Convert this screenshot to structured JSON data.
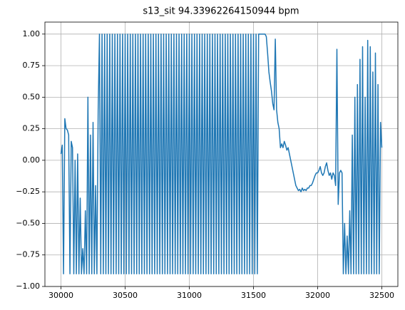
{
  "chart_data": {
    "type": "line",
    "title": "s13_sit 94.33962264150944 bpm",
    "x": [
      30000,
      30010,
      30020,
      30030,
      30040,
      30050,
      30060,
      30070,
      30080,
      30090,
      30100,
      30110,
      30120,
      30130,
      30140,
      30150,
      30160,
      30170,
      30180,
      30190,
      30200,
      30210,
      30220,
      30230,
      30240,
      30250,
      30260,
      30270,
      30280,
      30290,
      30300,
      30310,
      30320,
      30330,
      30340,
      30350,
      30360,
      30370,
      30380,
      30390,
      30400,
      30410,
      30420,
      30430,
      30440,
      30450,
      30460,
      30470,
      30480,
      30490,
      30500,
      30510,
      30520,
      30530,
      30540,
      30550,
      30560,
      30570,
      30580,
      30590,
      30600,
      30610,
      30620,
      30630,
      30640,
      30650,
      30660,
      30670,
      30680,
      30690,
      30700,
      30710,
      30720,
      30730,
      30740,
      30750,
      30760,
      30770,
      30780,
      30790,
      30800,
      30810,
      30820,
      30830,
      30840,
      30850,
      30860,
      30870,
      30880,
      30890,
      30900,
      30910,
      30920,
      30930,
      30940,
      30950,
      30960,
      30970,
      30980,
      30990,
      31000,
      31010,
      31020,
      31030,
      31040,
      31050,
      31060,
      31070,
      31080,
      31090,
      31100,
      31110,
      31120,
      31130,
      31140,
      31150,
      31160,
      31170,
      31180,
      31190,
      31200,
      31210,
      31220,
      31230,
      31240,
      31250,
      31260,
      31270,
      31280,
      31290,
      31300,
      31310,
      31320,
      31330,
      31340,
      31350,
      31360,
      31370,
      31380,
      31390,
      31400,
      31410,
      31420,
      31430,
      31440,
      31450,
      31460,
      31470,
      31480,
      31490,
      31500,
      31510,
      31520,
      31530,
      31540,
      31550,
      31560,
      31570,
      31580,
      31590,
      31600,
      31610,
      31620,
      31630,
      31640,
      31650,
      31660,
      31670,
      31680,
      31690,
      31700,
      31710,
      31720,
      31730,
      31740,
      31750,
      31760,
      31770,
      31780,
      31790,
      31800,
      31810,
      31820,
      31830,
      31840,
      31850,
      31860,
      31870,
      31880,
      31890,
      31900,
      31910,
      31920,
      31930,
      31940,
      31950,
      31960,
      31970,
      31980,
      31990,
      32000,
      32010,
      32020,
      32030,
      32040,
      32050,
      32060,
      32070,
      32080,
      32090,
      32100,
      32110,
      32120,
      32130,
      32140,
      32150,
      32160,
      32170,
      32180,
      32190,
      32200,
      32210,
      32220,
      32230,
      32240,
      32250,
      32260,
      32270,
      32280,
      32290,
      32300,
      32310,
      32320,
      32330,
      32340,
      32350,
      32360,
      32370,
      32380,
      32390,
      32400,
      32410,
      32420,
      32430,
      32440,
      32450,
      32460,
      32470,
      32480,
      32490,
      32500
    ],
    "series": [
      {
        "color": "#1f77b4",
        "values": [
          0.05,
          0.12,
          -0.9,
          0.33,
          0.25,
          0.24,
          0.2,
          -0.9,
          0.15,
          0.1,
          -0.9,
          0.0,
          -0.9,
          0.05,
          -0.9,
          -0.3,
          -0.9,
          -0.7,
          -0.9,
          -0.4,
          -0.9,
          0.5,
          -0.9,
          0.2,
          -0.9,
          0.3,
          -0.9,
          -0.2,
          -0.9,
          0.4,
          1,
          -0.9,
          1,
          -0.9,
          1,
          -0.9,
          1,
          -0.9,
          1,
          -0.9,
          1,
          -0.9,
          1,
          -0.9,
          1,
          -0.9,
          1,
          -0.9,
          1,
          -0.9,
          1,
          -0.9,
          1,
          -0.9,
          1,
          -0.9,
          1,
          -0.9,
          1,
          -0.9,
          1,
          -0.9,
          1,
          -0.9,
          1,
          -0.9,
          1,
          -0.9,
          1,
          -0.9,
          1,
          -0.9,
          1,
          -0.9,
          1,
          -0.9,
          1,
          -0.9,
          1,
          -0.9,
          1,
          -0.9,
          1,
          -0.9,
          1,
          -0.9,
          1,
          -0.9,
          1,
          -0.9,
          1,
          -0.9,
          1,
          -0.9,
          1,
          -0.9,
          1,
          -0.9,
          1,
          -0.9,
          1,
          -0.9,
          1,
          -0.9,
          1,
          -0.9,
          1,
          -0.9,
          1,
          -0.9,
          1,
          -0.9,
          1,
          -0.9,
          1,
          -0.9,
          1,
          -0.9,
          1,
          -0.9,
          1,
          -0.9,
          1,
          -0.9,
          1,
          -0.9,
          1,
          -0.9,
          1,
          -0.9,
          1,
          -0.9,
          1,
          -0.9,
          1,
          -0.9,
          1,
          -0.9,
          1,
          -0.9,
          1,
          -0.9,
          1,
          -0.9,
          1,
          -0.9,
          1,
          -0.9,
          1,
          -0.9,
          1,
          -0.9,
          1,
          -0.9,
          1,
          1,
          1,
          1,
          1,
          1,
          0.98,
          0.85,
          0.7,
          0.62,
          0.55,
          0.45,
          0.4,
          0.96,
          0.4,
          0.3,
          0.25,
          0.1,
          0.13,
          0.1,
          0.15,
          0.12,
          0.08,
          0.1,
          0.05,
          0.0,
          -0.05,
          -0.1,
          -0.15,
          -0.2,
          -0.22,
          -0.24,
          -0.23,
          -0.25,
          -0.22,
          -0.24,
          -0.23,
          -0.24,
          -0.22,
          -0.22,
          -0.2,
          -0.2,
          -0.18,
          -0.15,
          -0.12,
          -0.1,
          -0.1,
          -0.08,
          -0.05,
          -0.1,
          -0.12,
          -0.1,
          -0.05,
          -0.02,
          -0.08,
          -0.12,
          -0.1,
          -0.15,
          -0.1,
          -0.12,
          -0.2,
          0.88,
          -0.35,
          -0.1,
          -0.08,
          -0.1,
          -0.9,
          -0.5,
          -0.9,
          -0.6,
          -0.9,
          -0.4,
          -0.9,
          0.2,
          -0.9,
          0.5,
          -0.9,
          0.6,
          -0.9,
          0.8,
          -0.9,
          0.9,
          -0.9,
          0.5,
          -0.9,
          0.95,
          -0.9,
          0.9,
          -0.9,
          0.7,
          -0.9,
          0.85,
          -0.9,
          0.6,
          -0.9,
          0.3,
          0.1
        ]
      }
    ],
    "xlim": [
      29875,
      32625
    ],
    "ylim": [
      -1.0,
      1.095
    ],
    "xticks": [
      30000,
      30500,
      31000,
      31500,
      32000,
      32500
    ],
    "yticks": [
      {
        "value": -1.0,
        "label": "−1.00"
      },
      {
        "value": -0.75,
        "label": "−0.75"
      },
      {
        "value": -0.5,
        "label": "−0.50"
      },
      {
        "value": -0.25,
        "label": "−0.25"
      },
      {
        "value": 0,
        "label": "0.00"
      },
      {
        "value": 0.25,
        "label": "0.25"
      },
      {
        "value": 0.5,
        "label": "0.50"
      },
      {
        "value": 0.75,
        "label": "0.75"
      },
      {
        "value": 1.0,
        "label": "1.00"
      }
    ],
    "grid": true
  }
}
